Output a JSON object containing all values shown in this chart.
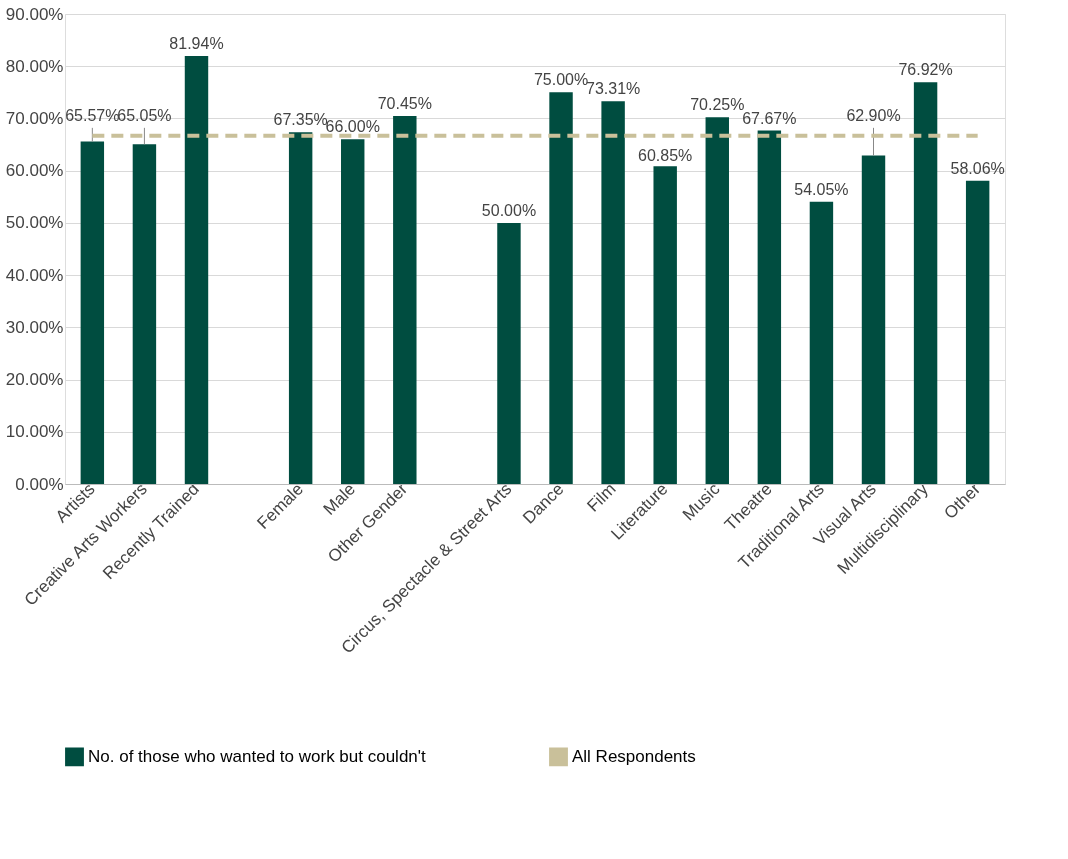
{
  "chart_data": {
    "type": "bar",
    "categories": [
      "Artists",
      "Creative Arts Workers",
      "Recently Trained",
      null,
      "Female",
      "Male",
      "Other Gender",
      null,
      "Circus, Spectacle & Street Arts",
      "Dance",
      "Film",
      "Literature",
      "Music",
      "Theatre",
      "Traditional Arts",
      "Visual Arts",
      "Multidisciplinary",
      "Other"
    ],
    "series": [
      {
        "name": "No. of those who wanted to work but couldn't",
        "type": "bar",
        "color": "#004d40",
        "values": [
          65.57,
          65.05,
          81.94,
          null,
          67.35,
          66.0,
          70.45,
          null,
          50.0,
          75.0,
          73.31,
          60.85,
          70.25,
          67.67,
          54.05,
          62.9,
          76.92,
          58.06
        ],
        "value_labels": [
          "65.57%",
          "65.05%",
          "81.94%",
          null,
          "67.35%",
          "66.00%",
          "70.45%",
          null,
          "50.00%",
          "75.00%",
          "73.31%",
          "60.85%",
          "70.25%",
          "67.67%",
          "54.05%",
          "62.90%",
          "76.92%",
          "58.06%"
        ]
      },
      {
        "name": "All Respondents",
        "type": "line",
        "color": "#c9c09a",
        "line_style": "dashed",
        "values": [
          66.7,
          66.7,
          66.7,
          66.7,
          66.7,
          66.7,
          66.7,
          66.7,
          66.7,
          66.7,
          66.7,
          66.7,
          66.7,
          66.7,
          66.7,
          66.7,
          66.7,
          66.7
        ]
      }
    ],
    "ylim": [
      0,
      90
    ],
    "yticks": [
      {
        "value": 0,
        "label": "0.00%"
      },
      {
        "value": 10,
        "label": "10.00%"
      },
      {
        "value": 20,
        "label": "20.00%"
      },
      {
        "value": 30,
        "label": "30.00%"
      },
      {
        "value": 40,
        "label": "40.00%"
      },
      {
        "value": 50,
        "label": "50.00%"
      },
      {
        "value": 60,
        "label": "60.00%"
      },
      {
        "value": 70,
        "label": "70.00%"
      },
      {
        "value": 80,
        "label": "80.00%"
      },
      {
        "value": 90,
        "label": "90.00%"
      }
    ],
    "grid": "y",
    "legend": "bottom"
  }
}
